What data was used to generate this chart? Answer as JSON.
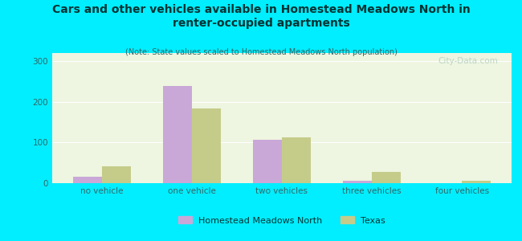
{
  "title": "Cars and other vehicles available in Homestead Meadows North in\nrenter-occupied apartments",
  "subtitle": "(Note: State values scaled to Homestead Meadows North population)",
  "categories": [
    "no vehicle",
    "one vehicle",
    "two vehicles",
    "three vehicles",
    "four vehicles"
  ],
  "hmn_values": [
    15,
    240,
    107,
    5,
    0
  ],
  "texas_values": [
    42,
    183,
    113,
    27,
    6
  ],
  "hmn_color": "#c9a8d8",
  "texas_color": "#c5cc8a",
  "background_outer": "#00eeff",
  "background_inner_top": "#f0f8e8",
  "background_inner_bottom": "#e0eecc",
  "ylim": [
    0,
    320
  ],
  "yticks": [
    0,
    100,
    200,
    300
  ],
  "bar_width": 0.32,
  "legend_label_hmn": "Homestead Meadows North",
  "legend_label_texas": "Texas",
  "watermark": "City-Data.com",
  "title_color": "#003333",
  "subtitle_color": "#336666",
  "tick_color": "#336666",
  "grid_color": "#ffffff"
}
